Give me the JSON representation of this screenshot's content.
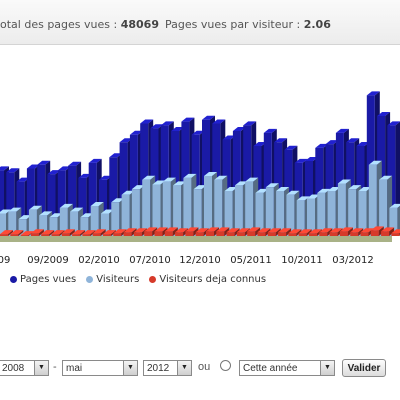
{
  "header": {
    "total_label": "otal des pages vues :",
    "total_value": "48069",
    "per_visitor_label": "Pages vues par visiteur :",
    "per_visitor_value": "2.06"
  },
  "chart_data": {
    "type": "bar",
    "x_tick_labels": [
      "09",
      "09/2009",
      "02/2010",
      "07/2010",
      "12/2010",
      "05/2011",
      "10/2011",
      "03/2012"
    ],
    "series": [
      {
        "name": "Pages vues",
        "color": "#1a1aa6",
        "values": [
          70,
          68,
          58,
          72,
          76,
          66,
          70,
          75,
          62,
          78,
          60,
          84,
          100,
          108,
          120,
          115,
          118,
          112,
          122,
          108,
          124,
          120,
          103,
          112,
          118,
          96,
          110,
          100,
          92,
          78,
          80,
          94,
          98,
          110,
          100,
          96,
          150,
          128,
          118
        ]
      },
      {
        "name": "Visiteurs",
        "color": "#8fb4d9",
        "values": [
          24,
          26,
          18,
          28,
          22,
          20,
          30,
          26,
          20,
          32,
          24,
          36,
          44,
          50,
          60,
          55,
          58,
          54,
          62,
          50,
          64,
          60,
          48,
          54,
          58,
          46,
          52,
          48,
          44,
          38,
          40,
          46,
          48,
          56,
          50,
          48,
          76,
          60,
          30
        ]
      },
      {
        "name": "Visiteurs deja connus",
        "color": "#d63a2a",
        "values": [
          2,
          2,
          1,
          3,
          2,
          2,
          3,
          2,
          2,
          3,
          2,
          3,
          4,
          4,
          5,
          5,
          5,
          4,
          5,
          4,
          5,
          5,
          4,
          4,
          5,
          4,
          4,
          4,
          3,
          3,
          3,
          4,
          4,
          5,
          4,
          4,
          6,
          5,
          3
        ]
      }
    ]
  },
  "legend": {
    "pages_vues": "Pages vues",
    "visiteurs": "Visiteurs",
    "deja_connus": "Visiteurs deja connus"
  },
  "controls": {
    "year_from": "2008",
    "dash": "-",
    "month_to": "mai",
    "year_to": "2012",
    "ou": "ou",
    "period": "Cette année",
    "submit": "Valider"
  }
}
